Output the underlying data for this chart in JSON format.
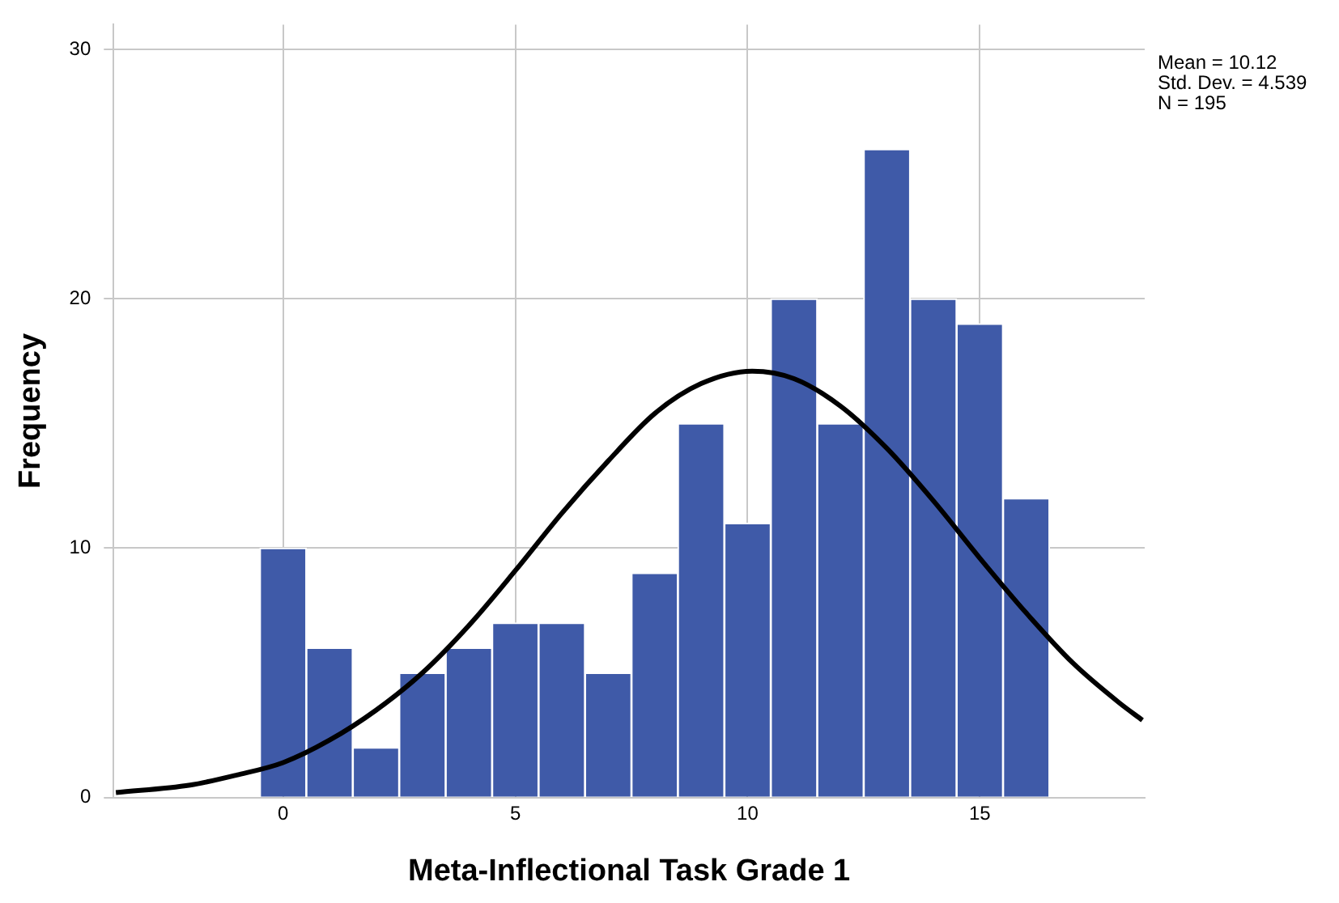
{
  "chart_data": {
    "type": "histogram",
    "xlabel": "Meta-Inflectional Task Grade 1",
    "ylabel": "Frequency",
    "annotations": [
      "Mean = 10.12",
      "Std. Dev. = 4.539",
      "N = 195"
    ],
    "bins": [
      -0.5,
      0.5,
      1.5,
      2.5,
      3.5,
      4.5,
      5.5,
      6.5,
      7.5,
      8.5,
      9.5,
      10.5,
      11.5,
      12.5,
      13.5,
      14.5,
      15.5,
      16.5
    ],
    "values": [
      10,
      6,
      2,
      5,
      6,
      7,
      7,
      5,
      9,
      15,
      11,
      20,
      15,
      26,
      20,
      19,
      12
    ],
    "color": "#3f5aa8",
    "series": [
      {
        "type": "line",
        "color": "#000000",
        "x": [
          -3.6,
          -2,
          -1,
          0,
          1,
          2,
          3,
          4,
          5,
          6,
          7,
          8,
          9,
          10.1,
          11,
          12,
          13,
          14,
          15,
          16,
          17,
          18,
          18.5
        ],
        "values": [
          0.2,
          0.5,
          0.9,
          1.4,
          2.3,
          3.5,
          5,
          6.9,
          9.1,
          11.4,
          13.5,
          15.4,
          16.6,
          17.1,
          16.8,
          15.7,
          14,
          11.9,
          9.6,
          7.4,
          5.4,
          3.8,
          3.1
        ]
      }
    ],
    "xlim": [
      -3.65,
      18.55
    ],
    "ylim": [
      0,
      31
    ],
    "xticks": [
      0,
      5,
      10,
      15
    ],
    "yticks": [
      0,
      10,
      20,
      30
    ],
    "grid": true,
    "legend": false,
    "marker": "none",
    "line_style": "solid"
  }
}
